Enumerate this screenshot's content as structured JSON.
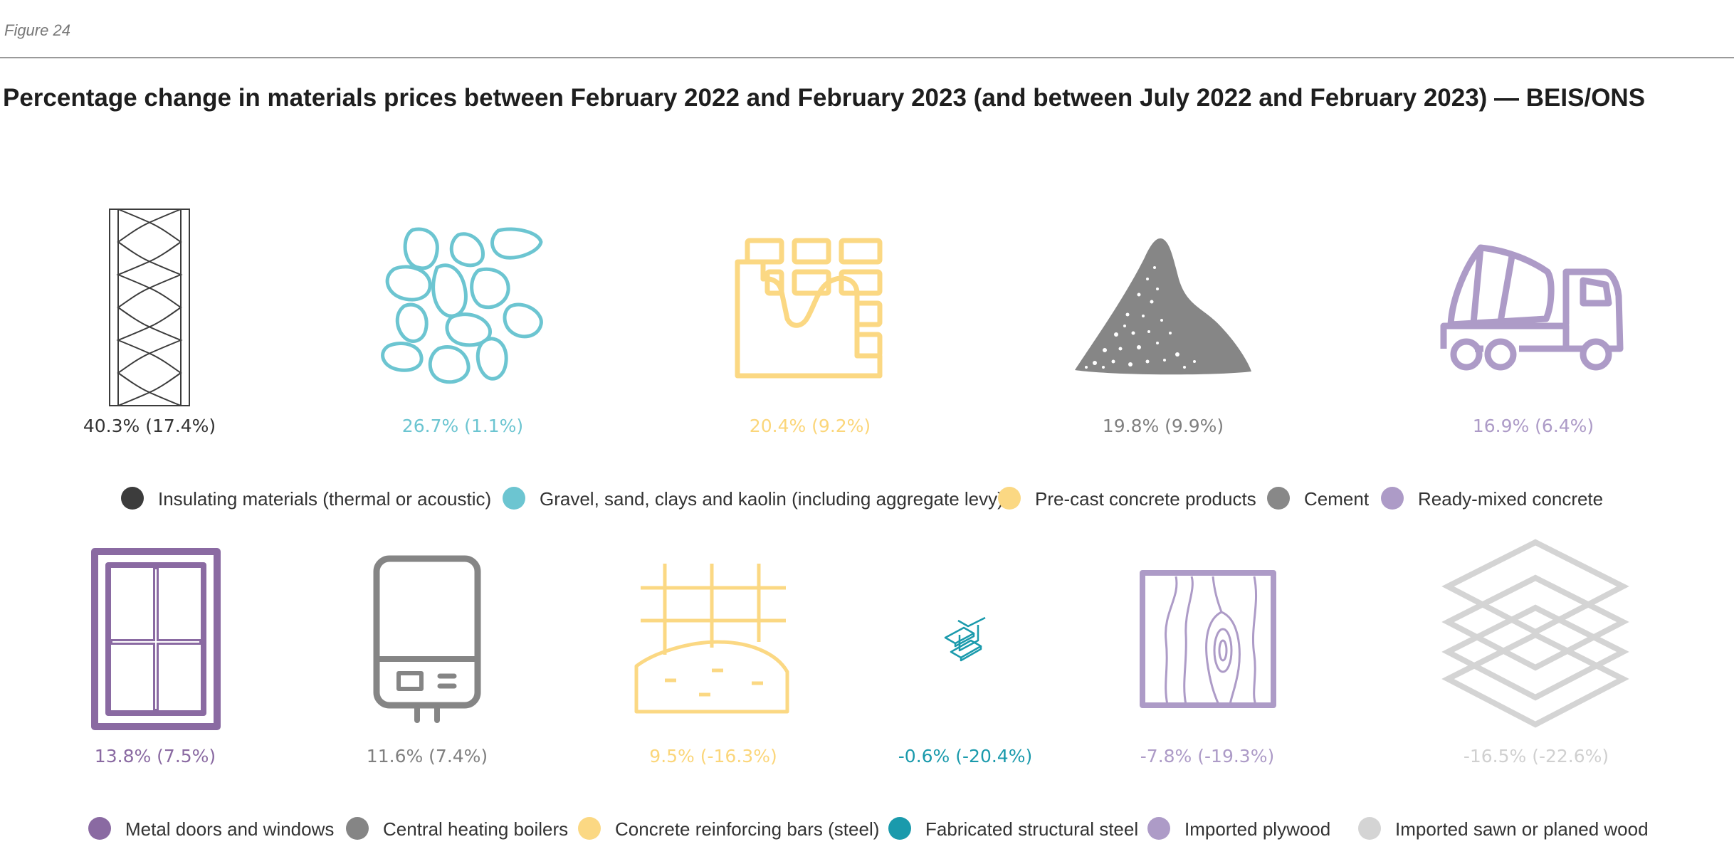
{
  "figure_label": "Figure 24",
  "title": "Percentage change in materials prices between February 2022 and February 2023 (and between July 2022 and February 2023) — BEIS/ONS",
  "chart_data": {
    "type": "table",
    "title": "Percentage change in materials prices between February 2022 and February 2023 (and between July 2022 and February 2023) — BEIS/ONS",
    "value_unit": "%",
    "items": [
      {
        "name": "Insulating materials (thermal or acoustic)",
        "feb22_feb23": 40.3,
        "jul22_feb23": 17.4,
        "label": "40.3% (17.4%)",
        "color": "#3c3c3c",
        "value_color": "#333333",
        "icon": "insulation-icon"
      },
      {
        "name": "Gravel, sand, clays and kaolin (including aggregate levy)",
        "feb22_feb23": 26.7,
        "jul22_feb23": 1.1,
        "label": "26.7% (1.1%)",
        "color": "#6cc5d1",
        "value_color": "#6cc5d1",
        "icon": "gravel-icon"
      },
      {
        "name": "Pre-cast concrete products",
        "feb22_feb23": 20.4,
        "jul22_feb23": 9.2,
        "label": "20.4% (9.2%)",
        "color": "#fbd883",
        "value_color": "#fbd67a",
        "icon": "precast-blocks-icon"
      },
      {
        "name": "Cement",
        "feb22_feb23": 19.8,
        "jul22_feb23": 9.9,
        "label": "19.8% (9.9%)",
        "color": "#888888",
        "value_color": "#808080",
        "icon": "cement-pile-icon"
      },
      {
        "name": "Ready-mixed concrete",
        "feb22_feb23": 16.9,
        "jul22_feb23": 6.4,
        "label": "16.9% (6.4%)",
        "color": "#ad9bc7",
        "value_color": "#ad9bc7",
        "icon": "concrete-mixer-truck-icon"
      },
      {
        "name": "Metal doors and windows",
        "feb22_feb23": 13.8,
        "jul22_feb23": 7.5,
        "label": "13.8% (7.5%)",
        "color": "#8a6aa2",
        "value_color": "#8a6aa2",
        "icon": "window-icon"
      },
      {
        "name": "Central heating boilers",
        "feb22_feb23": 11.6,
        "jul22_feb23": 7.4,
        "label": "11.6% (7.4%)",
        "color": "#858585",
        "value_color": "#808080",
        "icon": "boiler-icon"
      },
      {
        "name": "Concrete reinforcing bars (steel)",
        "feb22_feb23": 9.5,
        "jul22_feb23": -16.3,
        "label": "9.5% (-16.3%)",
        "color": "#fbd883",
        "value_color": "#fbd67a",
        "icon": "rebar-icon"
      },
      {
        "name": "Fabricated structural steel",
        "feb22_feb23": -0.6,
        "jul22_feb23": -20.4,
        "label": "-0.6% (-20.4%)",
        "color": "#1a9aac",
        "value_color": "#1a9aac",
        "icon": "steel-beam-icon"
      },
      {
        "name": "Imported plywood",
        "feb22_feb23": -7.8,
        "jul22_feb23": -19.3,
        "label": "-7.8% (-19.3%)",
        "color": "#ad9bc7",
        "value_color": "#ad9bc7",
        "icon": "plywood-icon"
      },
      {
        "name": "Imported sawn or planed wood",
        "feb22_feb23": -16.5,
        "jul22_feb23": -22.6,
        "label": "-16.5% (-22.6%)",
        "color": "#d4d4d4",
        "value_color": "#d0d0d0",
        "icon": "stacked-layers-icon"
      }
    ]
  }
}
